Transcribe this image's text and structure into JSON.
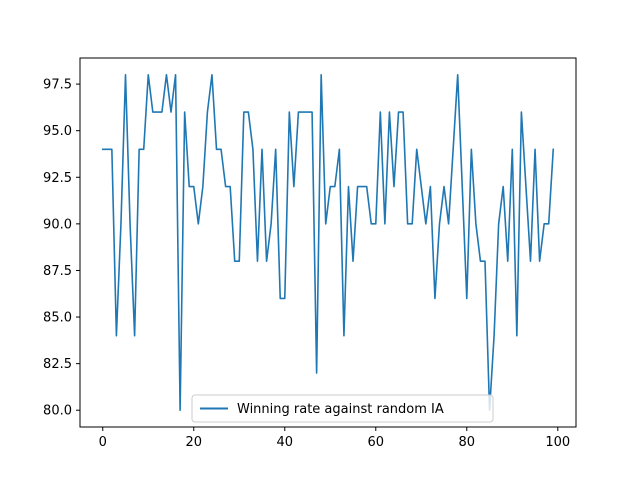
{
  "chart_data": {
    "type": "line",
    "title": "",
    "xlabel": "",
    "ylabel": "",
    "xlim": [
      -5,
      104
    ],
    "ylim": [
      79.1,
      98.9
    ],
    "xticks": [
      0,
      20,
      40,
      60,
      80,
      100
    ],
    "xtick_labels": [
      "0",
      "20",
      "40",
      "60",
      "80",
      "100"
    ],
    "yticks": [
      80.0,
      82.5,
      85.0,
      87.5,
      90.0,
      92.5,
      95.0,
      97.5
    ],
    "ytick_labels": [
      "80.0",
      "82.5",
      "85.0",
      "87.5",
      "90.0",
      "92.5",
      "95.0",
      "97.5"
    ],
    "grid": false,
    "legend_position": "bottom-center",
    "series": [
      {
        "name": "Winning rate against random IA",
        "color": "#1f77b4",
        "x": [
          0,
          1,
          2,
          3,
          4,
          5,
          6,
          7,
          8,
          9,
          10,
          11,
          12,
          13,
          14,
          15,
          16,
          17,
          18,
          19,
          20,
          21,
          22,
          23,
          24,
          25,
          26,
          27,
          28,
          29,
          30,
          31,
          32,
          33,
          34,
          35,
          36,
          37,
          38,
          39,
          40,
          41,
          42,
          43,
          44,
          45,
          46,
          47,
          48,
          49,
          50,
          51,
          52,
          53,
          54,
          55,
          56,
          57,
          58,
          59,
          60,
          61,
          62,
          63,
          64,
          65,
          66,
          67,
          68,
          69,
          70,
          71,
          72,
          73,
          74,
          75,
          76,
          77,
          78,
          79,
          80,
          81,
          82,
          83,
          84,
          85,
          86,
          87,
          88,
          89,
          90,
          91,
          92,
          93,
          94,
          95,
          96,
          97,
          98,
          99
        ],
        "values": [
          94,
          94,
          94,
          84,
          90,
          98,
          90,
          84,
          94,
          94,
          98,
          96,
          96,
          96,
          98,
          96,
          98,
          80,
          96,
          92,
          92,
          90,
          92,
          96,
          98,
          94,
          94,
          92,
          92,
          88,
          88,
          96,
          96,
          94,
          88,
          94,
          88,
          90,
          94,
          86,
          86,
          96,
          92,
          96,
          96,
          96,
          96,
          82,
          98,
          90,
          92,
          92,
          94,
          84,
          92,
          88,
          92,
          92,
          92,
          90,
          90,
          96,
          90,
          96,
          92,
          96,
          96,
          90,
          90,
          94,
          92,
          90,
          92,
          86,
          90,
          92,
          90,
          94,
          98,
          92,
          86,
          94,
          90,
          88,
          88,
          80,
          84,
          90,
          92,
          88,
          94,
          84,
          96,
          92,
          88,
          94,
          88,
          90,
          90,
          94
        ]
      }
    ]
  }
}
